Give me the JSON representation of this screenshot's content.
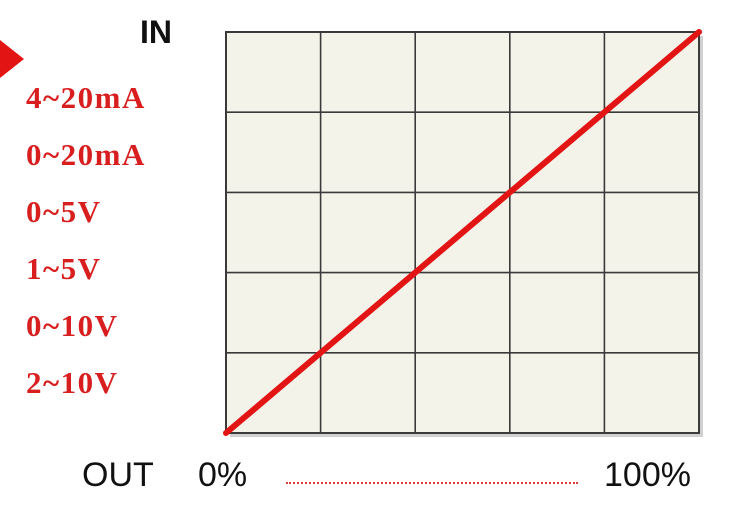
{
  "header": {
    "input_label": "IN"
  },
  "input_ranges": [
    "4~20mA",
    "0~20mA",
    "0~5V",
    "1~5V",
    "0~10V",
    "2~10V"
  ],
  "footer": {
    "output_label": "OUT",
    "start_label": "0%",
    "end_label": "100%"
  },
  "colors": {
    "accent": "#e31414",
    "range_text": "#d81e1e",
    "plot_background": "#f3f3ea",
    "grid": "#3a3a3a",
    "frame_shadow": "#aaaaaa"
  },
  "chart_data": {
    "type": "line",
    "title": "",
    "xlabel": "OUT",
    "ylabel": "IN",
    "x": [
      0,
      100
    ],
    "series": [
      {
        "values": [
          0,
          100
        ]
      }
    ],
    "xlim": [
      0,
      100
    ],
    "ylim": [
      0,
      100
    ],
    "grid": true,
    "grid_divisions": {
      "x": 5,
      "y": 5
    }
  }
}
